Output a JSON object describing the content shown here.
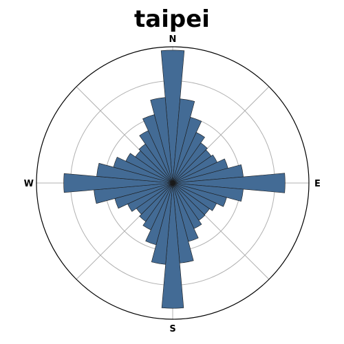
{
  "chart_data": {
    "type": "polar-bar",
    "title": "taipei",
    "direction_labels": [
      "N",
      "E",
      "S",
      "W"
    ],
    "bin_count": 36,
    "bin_width_deg": 10,
    "bin_centers_deg": [
      0,
      10,
      20,
      30,
      40,
      50,
      60,
      70,
      80,
      90,
      100,
      110,
      120,
      130,
      140,
      150,
      160,
      170,
      180,
      190,
      200,
      210,
      220,
      230,
      240,
      250,
      260,
      270,
      280,
      290,
      300,
      310,
      320,
      330,
      340,
      350
    ],
    "values": [
      1.95,
      1.24,
      1.0,
      0.82,
      0.72,
      0.69,
      0.72,
      0.84,
      1.04,
      1.65,
      1.04,
      0.82,
      0.71,
      0.66,
      0.67,
      0.74,
      0.89,
      1.18,
      1.84,
      1.2,
      0.94,
      0.76,
      0.69,
      0.65,
      0.73,
      0.88,
      1.16,
      1.6,
      1.12,
      0.9,
      0.76,
      0.67,
      0.7,
      0.85,
      1.04,
      1.26
    ],
    "r_max": 2.0,
    "r_gridlines": [
      0.5,
      1.0,
      1.5
    ],
    "theta_gridlines_deg": [
      0,
      45,
      90,
      135,
      180,
      225,
      270,
      315
    ],
    "grid": true,
    "colors": {
      "bar_fill": "#436b95",
      "bar_edge": "#1a1a1a",
      "grid": "#b0b0b0",
      "frame": "#000000"
    }
  }
}
